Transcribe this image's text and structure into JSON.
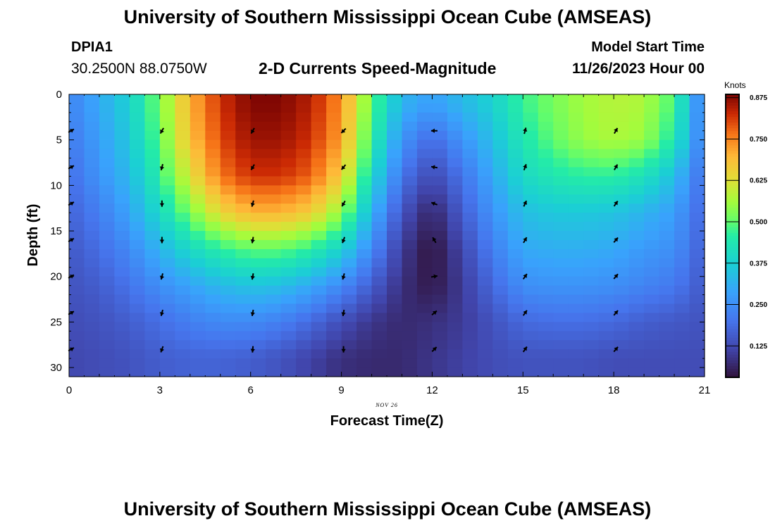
{
  "header": {
    "title": "University of Southern Mississippi Ocean Cube (AMSEAS)",
    "station_id": "DPIA1",
    "station_coords": "30.2500N  88.0750W",
    "start_label": "Model Start Time",
    "start_value": "11/26/2023 Hour 00"
  },
  "footer": {
    "title": "University of Southern Mississippi Ocean Cube (AMSEAS)"
  },
  "chart_data": {
    "type": "heatmap",
    "title": "2-D Currents Speed-Magnitude",
    "xlabel": "Forecast Time(Z)",
    "ylabel": "Depth (ft)",
    "date_annotation": "NOV 26",
    "xlim": [
      0,
      21
    ],
    "ylim": [
      0,
      31
    ],
    "xticks": [
      0,
      3,
      6,
      9,
      12,
      15,
      18,
      21
    ],
    "yticks": [
      0,
      5,
      10,
      15,
      20,
      25,
      30
    ],
    "colorbar": {
      "label": "Knots",
      "range": [
        0.03,
        0.885
      ],
      "ticks": [
        "0.875",
        "0.750",
        "0.625",
        "0.500",
        "0.375",
        "0.250",
        "0.125"
      ],
      "tick_values": [
        0.875,
        0.75,
        0.625,
        0.5,
        0.375,
        0.25,
        0.125
      ]
    },
    "times": [
      0,
      1,
      2,
      3,
      4,
      5,
      6,
      7,
      8,
      9,
      10,
      11,
      12,
      13,
      14,
      15,
      16,
      17,
      18,
      19,
      20,
      21
    ],
    "depths": [
      1,
      5,
      9,
      13,
      17,
      21,
      25,
      29
    ],
    "speed_knots": [
      [
        0.23,
        0.3,
        0.38,
        0.52,
        0.7,
        0.82,
        0.88,
        0.88,
        0.84,
        0.74,
        0.5,
        0.32,
        0.28,
        0.33,
        0.38,
        0.47,
        0.52,
        0.56,
        0.58,
        0.57,
        0.48,
        0.2
      ],
      [
        0.21,
        0.28,
        0.36,
        0.5,
        0.68,
        0.8,
        0.86,
        0.86,
        0.82,
        0.72,
        0.46,
        0.26,
        0.18,
        0.26,
        0.34,
        0.44,
        0.5,
        0.55,
        0.57,
        0.55,
        0.44,
        0.2
      ],
      [
        0.19,
        0.26,
        0.33,
        0.46,
        0.62,
        0.76,
        0.82,
        0.82,
        0.78,
        0.66,
        0.4,
        0.2,
        0.12,
        0.2,
        0.3,
        0.4,
        0.44,
        0.46,
        0.46,
        0.42,
        0.34,
        0.18
      ],
      [
        0.17,
        0.22,
        0.29,
        0.4,
        0.52,
        0.64,
        0.7,
        0.7,
        0.66,
        0.54,
        0.32,
        0.14,
        0.06,
        0.16,
        0.26,
        0.34,
        0.36,
        0.36,
        0.35,
        0.32,
        0.28,
        0.17
      ],
      [
        0.15,
        0.19,
        0.24,
        0.32,
        0.4,
        0.46,
        0.5,
        0.5,
        0.46,
        0.38,
        0.24,
        0.1,
        0.03,
        0.12,
        0.22,
        0.3,
        0.31,
        0.31,
        0.3,
        0.27,
        0.25,
        0.16
      ],
      [
        0.14,
        0.16,
        0.2,
        0.25,
        0.29,
        0.33,
        0.35,
        0.34,
        0.3,
        0.24,
        0.16,
        0.08,
        0.04,
        0.1,
        0.18,
        0.25,
        0.26,
        0.26,
        0.25,
        0.23,
        0.21,
        0.15
      ],
      [
        0.13,
        0.14,
        0.16,
        0.19,
        0.22,
        0.24,
        0.24,
        0.22,
        0.18,
        0.13,
        0.09,
        0.07,
        0.08,
        0.1,
        0.14,
        0.18,
        0.19,
        0.19,
        0.18,
        0.16,
        0.15,
        0.14
      ],
      [
        0.12,
        0.13,
        0.14,
        0.16,
        0.17,
        0.17,
        0.16,
        0.14,
        0.11,
        0.08,
        0.07,
        0.07,
        0.09,
        0.11,
        0.13,
        0.14,
        0.14,
        0.14,
        0.13,
        0.13,
        0.13,
        0.13
      ]
    ],
    "arrow_times": [
      0,
      3,
      6,
      9,
      12,
      15,
      18
    ],
    "arrow_depths": [
      4,
      8,
      12,
      16,
      20,
      24,
      28
    ],
    "arrow_direction_deg": [
      [
        60,
        210,
        210,
        225,
        270,
        15,
        30
      ],
      [
        60,
        195,
        210,
        220,
        280,
        20,
        30
      ],
      [
        60,
        180,
        195,
        210,
        290,
        25,
        35
      ],
      [
        60,
        180,
        190,
        200,
        330,
        30,
        40
      ],
      [
        60,
        195,
        190,
        195,
        80,
        35,
        40
      ],
      [
        60,
        195,
        190,
        190,
        50,
        35,
        40
      ],
      [
        60,
        200,
        185,
        180,
        45,
        35,
        40
      ]
    ]
  }
}
